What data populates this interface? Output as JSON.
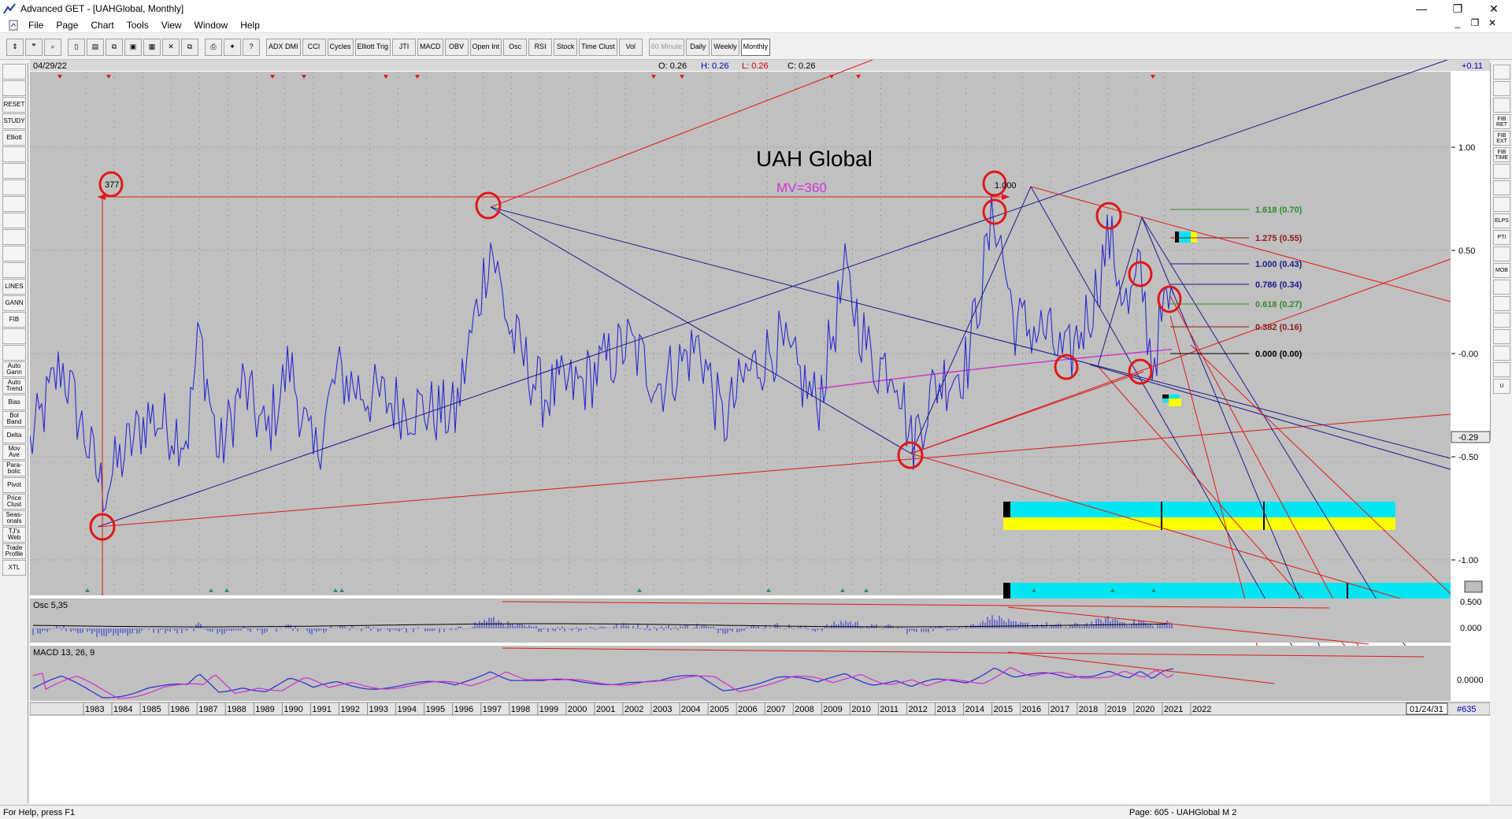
{
  "window": {
    "title": "Advanced GET - [UAHGlobal, Monthly]",
    "min": "—",
    "max": "❐",
    "close": "✕"
  },
  "menu": [
    "File",
    "Page",
    "Chart",
    "Tools",
    "View",
    "Window",
    "Help"
  ],
  "toolbar": {
    "left_icons": [
      "cursor-icon",
      "quote-icon",
      "magnify-icon",
      "page-icon",
      "print-icon",
      "copy-icon",
      "paste-icon",
      "window-icon",
      "delete-icon",
      "copy2-icon",
      "print2-icon",
      "bulb-icon",
      "help-icon"
    ],
    "studies": [
      "ADX DMI",
      "CCI",
      "Cycles",
      "Elliott Trig",
      "JTI",
      "MACD",
      "OBV",
      "Open Int",
      "Osc",
      "RSI",
      "Stock",
      "Time Clust",
      "Vol"
    ],
    "periods": [
      "60 Minute",
      "Daily",
      "Weekly",
      "Monthly"
    ]
  },
  "left_tools": [
    "",
    "",
    "RESET",
    "STUDY",
    "Elliott",
    "",
    "",
    "",
    "",
    "",
    "",
    "",
    "",
    "LINES",
    "GANN",
    "FIB",
    "",
    "",
    "Auto Gann",
    "Auto Trend",
    "Bias",
    "Bol Band",
    "Delta",
    "Mov Ave",
    "Para-bolic",
    "Pivot",
    "Price Clust",
    "Seas-onals",
    "TJ's Web",
    "Trade Profile",
    "XTL"
  ],
  "right_tools": [
    "",
    "",
    "",
    "FIB RET",
    "FIB EXT",
    "FIB TIME",
    "",
    "",
    "",
    "ELPS",
    "PTI",
    "",
    "MOB",
    "",
    "",
    "",
    "",
    "",
    "",
    "U"
  ],
  "header": {
    "date": "04/29/22",
    "open": "O: 0.26",
    "high": "H: 0.26",
    "low": "L: 0.26",
    "close": "C: 0.26",
    "right_value": "+0.11"
  },
  "chart": {
    "title": "UAH Global",
    "mv": "MV=360",
    "count_label": "377",
    "ratio_label": "1.000",
    "y_ticks": [
      "1.00",
      "0.50",
      "-0.00",
      "-0.50",
      "-1.00"
    ],
    "current_value_label": "-0.29",
    "fib_levels": [
      {
        "label": "1.618 (0.70)",
        "color": "#2e8b2e"
      },
      {
        "label": "1.275 (0.55)",
        "color": "#8b1a1a"
      },
      {
        "label": "1.000 (0.43)",
        "color": "#1a1a8b"
      },
      {
        "label": "0.786 (0.34)",
        "color": "#1a1a8b"
      },
      {
        "label": "0.618 (0.27)",
        "color": "#2e8b2e"
      },
      {
        "label": "0.382 (0.16)",
        "color": "#8b1a1a"
      },
      {
        "label": "0.000 (0.00)",
        "color": "#000000"
      }
    ],
    "x_ticks": [
      "1983",
      "1984",
      "1985",
      "1986",
      "1987",
      "1988",
      "1989",
      "1990",
      "1991",
      "1992",
      "1993",
      "1994",
      "1995",
      "1996",
      "1997",
      "1998",
      "1999",
      "2000",
      "2001",
      "2002",
      "2003",
      "2004",
      "2005",
      "2006",
      "2007",
      "2008",
      "2009",
      "2010",
      "2011",
      "2012",
      "2013",
      "2014",
      "2015",
      "2016",
      "2017",
      "2018",
      "2019",
      "2020",
      "2021",
      "2022"
    ],
    "end_date": "01/24/31",
    "page_num": "#635"
  },
  "osc": {
    "label": "Osc 5,35",
    "ticks": [
      "0.500",
      "0.000"
    ]
  },
  "macd": {
    "label": "MACD 13, 26, 9",
    "ticks": [
      "0.0000"
    ]
  },
  "status": {
    "help": "For Help, press F1",
    "page": "Page: 605 - UAHGlobal M 2"
  },
  "colors": {
    "price": "#2a2ad0",
    "ma": "#d030d0",
    "red": "#e01818",
    "navy": "#1a1a8b",
    "bg": "#c0c0c0",
    "cyan": "#00e5f0",
    "yellow": "#ffff00"
  }
}
